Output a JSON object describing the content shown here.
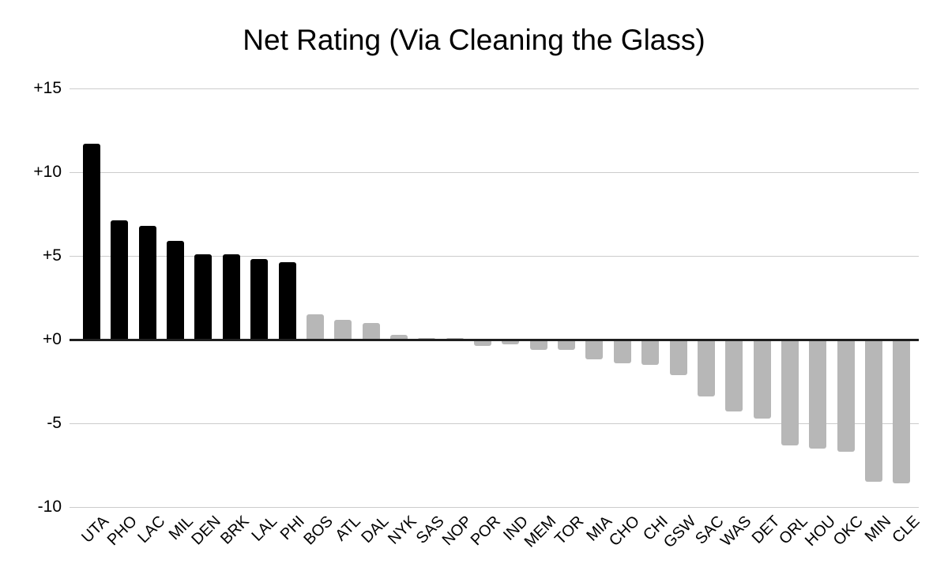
{
  "page": {
    "background": "#ffffff"
  },
  "chart_data": {
    "type": "bar",
    "title": "Net Rating (Via Cleaning the Glass)",
    "xlabel": "",
    "ylabel": "",
    "categories": [
      "UTA",
      "PHO",
      "LAC",
      "MIL",
      "DEN",
      "BRK",
      "LAL",
      "PHI",
      "BOS",
      "ATL",
      "DAL",
      "NYK",
      "SAS",
      "NOP",
      "POR",
      "IND",
      "MEM",
      "TOR",
      "MIA",
      "CHO",
      "CHI",
      "GSW",
      "SAC",
      "WAS",
      "DET",
      "ORL",
      "HOU",
      "OKC",
      "MIN",
      "CLE"
    ],
    "values": [
      11.7,
      7.1,
      6.8,
      5.9,
      5.1,
      5.1,
      4.8,
      4.6,
      1.5,
      1.2,
      1.0,
      0.3,
      0.1,
      0.1,
      -0.4,
      -0.3,
      -0.6,
      -0.6,
      -1.2,
      -1.4,
      -1.5,
      -2.1,
      -3.4,
      -4.3,
      -4.7,
      -6.3,
      -6.5,
      -6.7,
      -8.5,
      -8.6
    ],
    "highlight_count": 8,
    "colors": {
      "highlight_bar": "#000000",
      "default_bar": "#b7b7b7",
      "gridline": "#cccccc",
      "zero_line": "#1f1f1f",
      "text": "#000000"
    },
    "yticks": [
      {
        "value": 15,
        "label": "+15"
      },
      {
        "value": 10,
        "label": "+10"
      },
      {
        "value": 5,
        "label": "+5"
      },
      {
        "value": 0,
        "label": "+0"
      },
      {
        "value": -5,
        "label": "-5"
      },
      {
        "value": -10,
        "label": "-10"
      }
    ],
    "ylim": [
      -10,
      15
    ],
    "grid": true,
    "legend_position": "none",
    "x_label_rotation_deg": -45
  }
}
